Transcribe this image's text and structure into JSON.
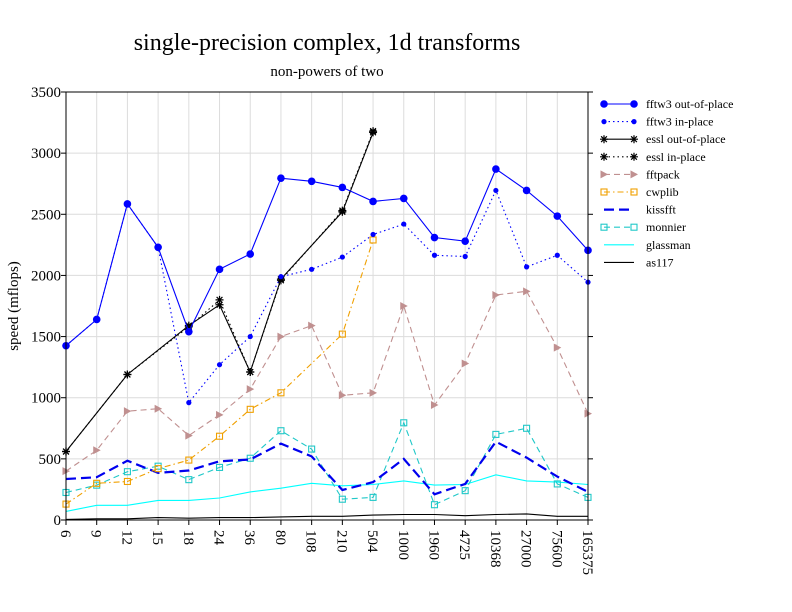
{
  "chart_data": {
    "type": "line",
    "title": "single-precision complex, 1d transforms",
    "subtitle": "non-powers of two",
    "xlabel": "",
    "ylabel": "speed (mflops)",
    "ylim": [
      0,
      3500
    ],
    "yticks": [
      0,
      500,
      1000,
      1500,
      2000,
      2500,
      3000,
      3500
    ],
    "grid": true,
    "legend_position": "right",
    "categories": [
      "6",
      "9",
      "12",
      "15",
      "18",
      "24",
      "36",
      "80",
      "108",
      "210",
      "504",
      "1000",
      "1960",
      "4725",
      "10368",
      "27000",
      "75600",
      "165375"
    ],
    "series": [
      {
        "name": "fftw3 out-of-place",
        "color": "#0000ff",
        "line": "solid",
        "marker": "circle",
        "values": [
          1425,
          1640,
          2585,
          2230,
          1540,
          2050,
          2175,
          2795,
          2770,
          2720,
          2605,
          2630,
          2310,
          2280,
          2870,
          2695,
          2485,
          2205
        ]
      },
      {
        "name": "fftw3 in-place",
        "color": "#0000ff",
        "line": "dotted",
        "marker": "dot",
        "values": [
          1425,
          1640,
          2585,
          2230,
          960,
          1270,
          1500,
          1990,
          2050,
          2150,
          2335,
          2420,
          2165,
          2155,
          2695,
          2070,
          2165,
          1945
        ]
      },
      {
        "name": "essl out-of-place",
        "color": "#000000",
        "line": "solid",
        "marker": "star",
        "values": [
          560,
          null,
          1190,
          null,
          1590,
          1760,
          1210,
          1970,
          null,
          2520,
          3170,
          null,
          null,
          null,
          null,
          null,
          null,
          null
        ]
      },
      {
        "name": "essl in-place",
        "color": "#000000",
        "line": "dotted",
        "marker": "star",
        "values": [
          560,
          null,
          1190,
          null,
          1580,
          1800,
          1210,
          1960,
          null,
          2530,
          3180,
          null,
          null,
          null,
          null,
          null,
          null,
          null
        ]
      },
      {
        "name": "fftpack",
        "color": "#c09090",
        "line": "dashed",
        "marker": "triangle",
        "values": [
          400,
          570,
          890,
          910,
          690,
          860,
          1070,
          1500,
          1590,
          1020,
          1040,
          1750,
          940,
          1280,
          1840,
          1870,
          1410,
          870
        ]
      },
      {
        "name": "cwplib",
        "color": "#f0a000",
        "line": "dashdot",
        "marker": "square",
        "values": [
          130,
          300,
          315,
          420,
          490,
          685,
          905,
          1040,
          null,
          1520,
          2290,
          null,
          null,
          null,
          null,
          null,
          null,
          null
        ]
      },
      {
        "name": "kissfft",
        "color": "#0000ee",
        "line": "longdash",
        "marker": "none",
        "values": [
          335,
          350,
          485,
          385,
          405,
          480,
          495,
          625,
          520,
          245,
          310,
          500,
          210,
          295,
          640,
          510,
          355,
          230
        ]
      },
      {
        "name": "monnier",
        "color": "#20c8c8",
        "line": "dashed",
        "marker": "square",
        "values": [
          225,
          285,
          395,
          440,
          330,
          430,
          505,
          730,
          580,
          170,
          185,
          795,
          125,
          240,
          700,
          750,
          295,
          185
        ]
      },
      {
        "name": "glassman",
        "color": "#00ffff",
        "line": "solid",
        "marker": "none",
        "values": [
          70,
          120,
          120,
          160,
          160,
          180,
          230,
          260,
          300,
          280,
          290,
          320,
          285,
          290,
          370,
          320,
          310,
          290
        ]
      },
      {
        "name": "as117",
        "color": "#000000",
        "line": "solid",
        "marker": "none",
        "values": [
          5,
          10,
          10,
          20,
          15,
          20,
          20,
          25,
          30,
          30,
          40,
          45,
          45,
          35,
          45,
          50,
          30,
          30
        ]
      }
    ]
  }
}
